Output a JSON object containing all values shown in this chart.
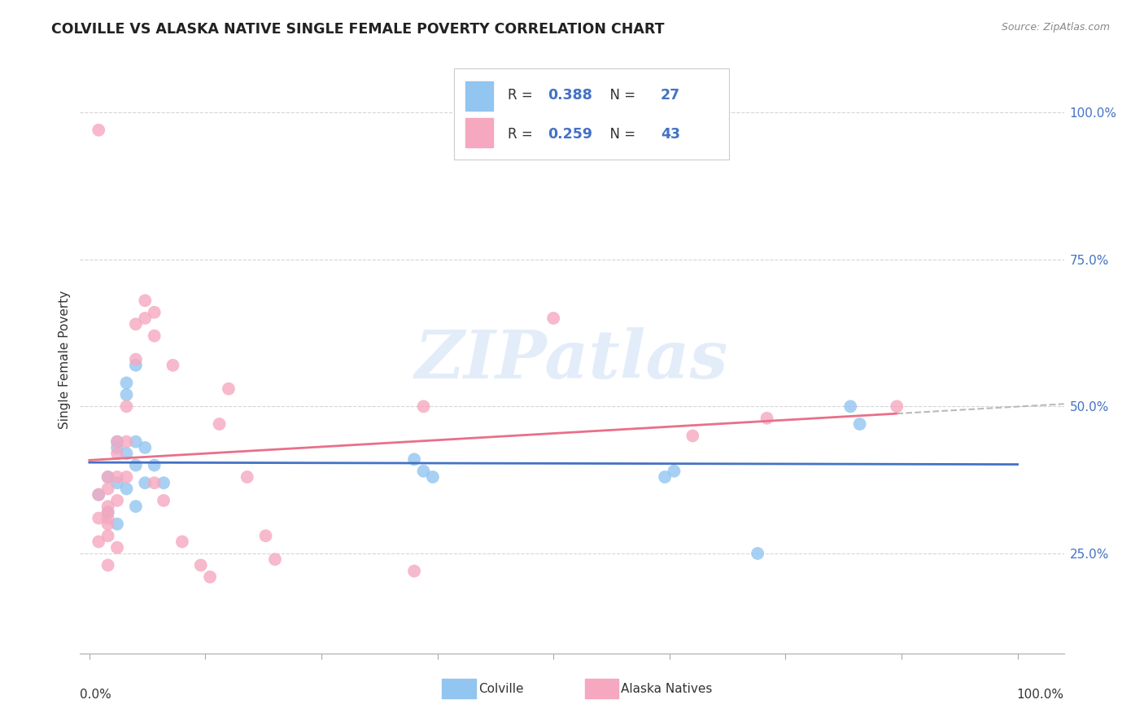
{
  "title": "COLVILLE VS ALASKA NATIVE SINGLE FEMALE POVERTY CORRELATION CHART",
  "source": "Source: ZipAtlas.com",
  "ylabel": "Single Female Poverty",
  "colville_R": 0.388,
  "colville_N": 27,
  "alaska_R": 0.259,
  "alaska_N": 43,
  "colville_color": "#92C5F0",
  "alaska_color": "#F5A8C0",
  "colville_line_color": "#4472C4",
  "alaska_line_color": "#E8708A",
  "legend_text_color": "#4472C4",
  "watermark_color": "#C8DCF5",
  "colville_x": [
    0.01,
    0.02,
    0.02,
    0.03,
    0.03,
    0.03,
    0.03,
    0.04,
    0.04,
    0.04,
    0.04,
    0.05,
    0.05,
    0.05,
    0.05,
    0.06,
    0.06,
    0.07,
    0.08,
    0.35,
    0.36,
    0.37,
    0.62,
    0.63,
    0.72,
    0.82,
    0.83
  ],
  "colville_y": [
    0.35,
    0.38,
    0.32,
    0.44,
    0.43,
    0.37,
    0.3,
    0.54,
    0.52,
    0.42,
    0.36,
    0.57,
    0.44,
    0.4,
    0.33,
    0.43,
    0.37,
    0.4,
    0.37,
    0.41,
    0.39,
    0.38,
    0.38,
    0.39,
    0.25,
    0.5,
    0.47
  ],
  "alaska_x": [
    0.01,
    0.01,
    0.01,
    0.01,
    0.02,
    0.02,
    0.02,
    0.02,
    0.02,
    0.02,
    0.02,
    0.02,
    0.03,
    0.03,
    0.03,
    0.03,
    0.03,
    0.04,
    0.04,
    0.04,
    0.05,
    0.05,
    0.06,
    0.06,
    0.07,
    0.07,
    0.07,
    0.08,
    0.09,
    0.1,
    0.12,
    0.13,
    0.14,
    0.15,
    0.17,
    0.19,
    0.2,
    0.35,
    0.36,
    0.5,
    0.65,
    0.73,
    0.87
  ],
  "alaska_y": [
    0.97,
    0.35,
    0.31,
    0.27,
    0.38,
    0.36,
    0.33,
    0.32,
    0.31,
    0.3,
    0.28,
    0.23,
    0.44,
    0.42,
    0.38,
    0.34,
    0.26,
    0.5,
    0.44,
    0.38,
    0.64,
    0.58,
    0.68,
    0.65,
    0.66,
    0.62,
    0.37,
    0.34,
    0.57,
    0.27,
    0.23,
    0.21,
    0.47,
    0.53,
    0.38,
    0.28,
    0.24,
    0.22,
    0.5,
    0.65,
    0.45,
    0.48,
    0.5
  ],
  "xlim": [
    -0.01,
    1.05
  ],
  "ylim": [
    0.08,
    1.08
  ],
  "yticks": [
    0.25,
    0.5,
    0.75,
    1.0
  ],
  "ytick_labels": [
    "25.0%",
    "50.0%",
    "75.0%",
    "100.0%"
  ],
  "xtick_positions": [
    0.0,
    0.125,
    0.25,
    0.375,
    0.5,
    0.625,
    0.75,
    0.875,
    1.0
  ]
}
